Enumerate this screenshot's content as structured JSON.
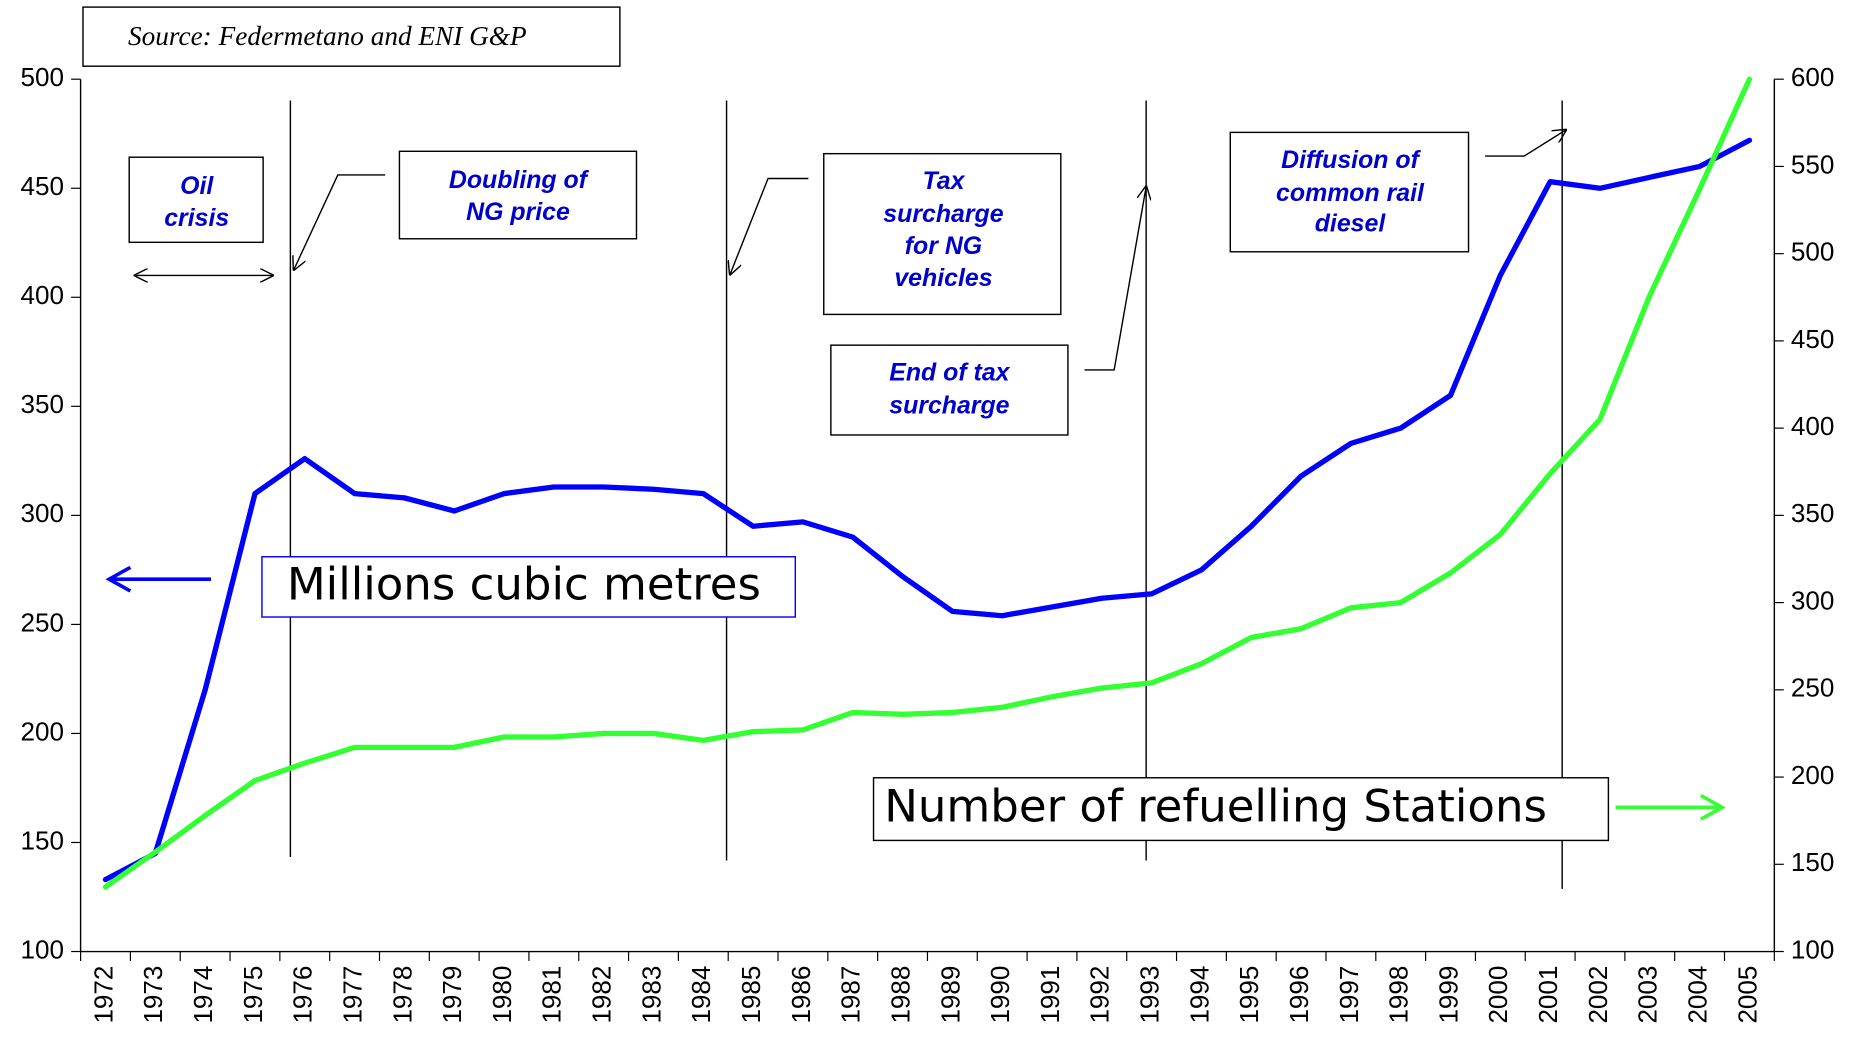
{
  "chart_data": {
    "type": "line",
    "source": "Source: Federmetano and ENI G&P",
    "categories": [
      "1972",
      "1973",
      "1974",
      "1975",
      "1976",
      "1977",
      "1978",
      "1979",
      "1980",
      "1981",
      "1982",
      "1983",
      "1984",
      "1985",
      "1986",
      "1987",
      "1988",
      "1989",
      "1990",
      "1991",
      "1992",
      "1993",
      "1994",
      "1995",
      "1996",
      "1997",
      "1998",
      "1999",
      "2000",
      "2001",
      "2002",
      "2003",
      "2004",
      "2005"
    ],
    "series": [
      {
        "name": "Millions cubic metres",
        "color": "#0000ff",
        "axis": "y",
        "values": [
          133,
          145,
          220,
          310,
          326,
          310,
          308,
          302,
          310,
          313,
          313,
          312,
          310,
          295,
          297,
          290,
          272,
          256,
          254,
          258,
          262,
          264,
          275,
          295,
          318,
          333,
          340,
          355,
          410,
          453,
          450,
          455,
          460,
          472
        ]
      },
      {
        "name": "Number of refuelling Stations",
        "color": "#33ff33",
        "axis": "y2",
        "values": [
          137,
          157,
          178,
          198,
          208,
          217,
          217,
          217,
          223,
          223,
          225,
          225,
          221,
          226,
          227,
          237,
          236,
          237,
          240,
          246,
          251,
          254,
          265,
          280,
          285,
          297,
          300,
          317,
          339,
          374,
          405,
          476,
          537,
          600
        ]
      }
    ],
    "ylim": [
      100,
      500
    ],
    "yticks": [
      100,
      150,
      200,
      250,
      300,
      350,
      400,
      450,
      500
    ],
    "y2lim": [
      100,
      600
    ],
    "y2ticks": [
      100,
      150,
      200,
      250,
      300,
      350,
      400,
      450,
      500,
      550,
      600
    ],
    "grid": false,
    "annotations": [
      [
        "Oil",
        "crisis"
      ],
      [
        "Doubling of",
        "NG price"
      ],
      [
        "Tax",
        "surcharge",
        "for NG",
        "vehicles"
      ],
      [
        "End of tax",
        "surcharge"
      ],
      [
        "Diffusion of",
        "common rail",
        "diesel"
      ]
    ]
  }
}
